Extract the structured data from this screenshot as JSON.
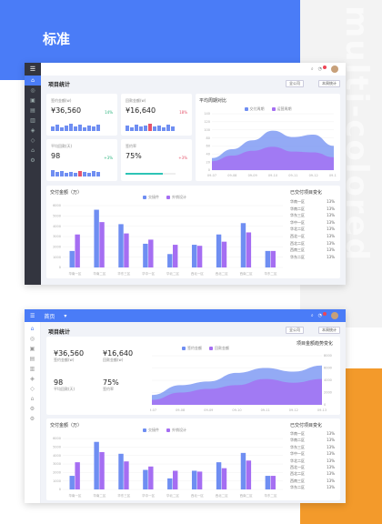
{
  "title": "标准",
  "watermark": "multi-colored",
  "colors": {
    "blue": "#4a7cf7",
    "orange": "#f39a2b",
    "purple": "#a56ef2",
    "teal": "#2ec4b6",
    "red": "#e5546c",
    "green": "#2ab37c"
  },
  "shot1": {
    "page_title": "项目统计",
    "select_company": "全公司",
    "select_year": "本周统计",
    "cards": [
      {
        "label": "签约金额(w)",
        "value": "¥36,560",
        "pct": "14%",
        "trend": "up"
      },
      {
        "label": "回款金额(w)",
        "value": "¥16,640",
        "pct": "18%",
        "trend": "down"
      },
      {
        "label": "平均回款(天)",
        "value": "98",
        "pct": "+3%",
        "trend": "up"
      },
      {
        "label": "签约率",
        "value": "75%",
        "pct": "+3%",
        "trend": "down"
      }
    ],
    "area_title": "平均周期对比",
    "area_legend": [
      "交付周期",
      "运营周期"
    ],
    "bar_title": "交付金额（万）",
    "bar_legend": [
      "交接件",
      "外销设计"
    ],
    "rank_title": "已交付项目变化"
  },
  "shot2": {
    "home": "首页",
    "page_title": "项目统计",
    "select_company": "全公司",
    "select_year": "本周统计",
    "stats": [
      {
        "value": "¥36,560",
        "label": "签约金额(w)"
      },
      {
        "value": "¥16,640",
        "label": "回款金额(w)"
      },
      {
        "value": "98",
        "label": "平均回款(天)"
      },
      {
        "value": "75%",
        "label": "签约率"
      }
    ],
    "area_title": "项目金额趋势变化",
    "area_legend": [
      "签约金额",
      "回款金额"
    ],
    "bar_title": "交付金额（万）",
    "bar_legend": [
      "交接件",
      "外销设计"
    ],
    "rank_title": "已交付项目变化"
  },
  "rank_items": [
    {
      "name": "华南一区",
      "value": "13%"
    },
    {
      "name": "华南二区",
      "value": "13%"
    },
    {
      "name": "华东三区",
      "value": "13%"
    },
    {
      "name": "华中一区",
      "value": "13%"
    },
    {
      "name": "华北二区",
      "value": "13%"
    },
    {
      "name": "西北一区",
      "value": "13%"
    },
    {
      "name": "西北二区",
      "value": "13%"
    },
    {
      "name": "西南三区",
      "value": "13%"
    },
    {
      "name": "华东二区",
      "value": "13%"
    }
  ],
  "chart_data": [
    {
      "type": "bar",
      "title": "交付金额（万）",
      "categories": [
        "华南一区",
        "华南二区",
        "华东三区",
        "华中一区",
        "华北二区",
        "西北一区",
        "西北二区",
        "西南二区",
        "华东二区"
      ],
      "series": [
        {
          "name": "交接件",
          "values": [
            1600,
            5600,
            4200,
            2300,
            1300,
            2200,
            3200,
            4300,
            1600
          ]
        },
        {
          "name": "外销设计",
          "values": [
            3200,
            4400,
            3300,
            2700,
            2200,
            2100,
            2500,
            3400,
            1600
          ]
        }
      ],
      "ylim": [
        0,
        6000
      ],
      "yticks": [
        0,
        1000,
        2000,
        3000,
        4000,
        5000,
        6000
      ]
    },
    {
      "type": "area",
      "title": "平均周期对比",
      "categories": [
        "09-07",
        "09-08",
        "09-09",
        "09-10",
        "09-11",
        "09-12",
        "09-13"
      ],
      "series": [
        {
          "name": "交付周期",
          "values": [
            30,
            52,
            74,
            98,
            82,
            88,
            60
          ]
        },
        {
          "name": "运营周期",
          "values": [
            22,
            36,
            48,
            58,
            46,
            44,
            32
          ]
        }
      ],
      "ylim": [
        0,
        140
      ],
      "yticks": [
        0,
        20,
        40,
        60,
        80,
        100,
        120,
        140
      ]
    },
    {
      "type": "area",
      "title": "项目金额趋势变化",
      "categories": [
        "09-07",
        "09-08",
        "09-09",
        "09-10",
        "09-11",
        "09-12",
        "09-13"
      ],
      "series": [
        {
          "name": "签约金额",
          "values": [
            1600,
            3200,
            3800,
            5200,
            6000,
            5400,
            6400
          ]
        },
        {
          "name": "回款金额",
          "values": [
            800,
            2000,
            2600,
            3200,
            4200,
            3600,
            4200
          ]
        }
      ],
      "ylim": [
        0,
        8000
      ],
      "yticks": [
        0,
        2000,
        4000,
        6000,
        8000
      ]
    }
  ]
}
